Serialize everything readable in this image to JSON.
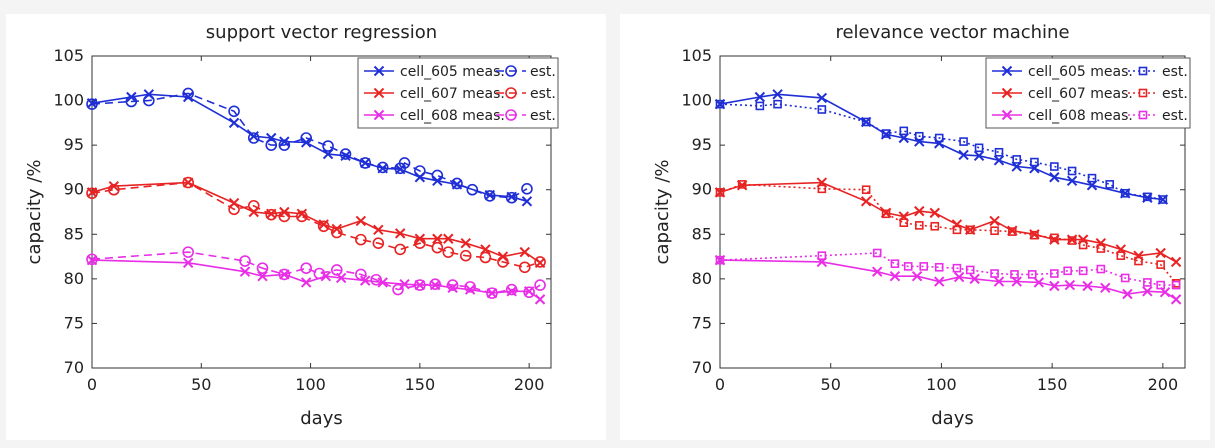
{
  "chart_data": [
    {
      "type": "line",
      "title": "support vector regression",
      "xlabel": "days",
      "ylabel": "capacity /%",
      "xlim": [
        0,
        210
      ],
      "ylim": [
        70,
        105
      ],
      "xticks": [
        0,
        50,
        100,
        150,
        200
      ],
      "yticks": [
        70,
        75,
        80,
        85,
        90,
        95,
        100,
        105
      ],
      "grid": false,
      "legend_position": "top-right",
      "series": [
        {
          "name": "cell_605 meas.",
          "color": "#1f2fd6",
          "marker": "x",
          "style": "solid",
          "x": [
            0,
            18,
            26,
            44,
            65,
            74,
            82,
            88,
            98,
            108,
            116,
            125,
            133,
            141,
            150,
            158,
            167,
            182,
            192,
            199
          ],
          "y": [
            99.7,
            100.4,
            100.7,
            100.4,
            97.5,
            96.0,
            95.8,
            95.4,
            95.3,
            94.0,
            93.8,
            93.0,
            92.4,
            92.3,
            91.4,
            91.0,
            90.6,
            89.4,
            89.2,
            88.7
          ]
        },
        {
          "name": "est.",
          "color": "#1f2fd6",
          "marker": "o",
          "style": "dashed",
          "x": [
            0,
            18,
            26,
            44,
            65,
            74,
            82,
            88,
            98,
            108,
            116,
            125,
            133,
            141,
            143,
            150,
            158,
            167,
            174,
            182,
            192,
            199
          ],
          "y": [
            99.6,
            99.9,
            100.0,
            100.8,
            98.8,
            95.8,
            95.0,
            95.0,
            95.8,
            94.9,
            94.0,
            93.0,
            92.5,
            92.4,
            93.0,
            92.1,
            91.6,
            90.7,
            90.0,
            89.3,
            89.1,
            90.1
          ]
        },
        {
          "name": "cell_607 meas.",
          "color": "#e82323",
          "marker": "x",
          "style": "solid",
          "x": [
            0,
            10,
            44,
            65,
            74,
            82,
            88,
            96,
            106,
            112,
            123,
            131,
            141,
            150,
            158,
            163,
            171,
            180,
            188,
            198,
            205
          ],
          "y": [
            89.7,
            90.4,
            90.8,
            88.5,
            87.5,
            87.3,
            87.5,
            87.3,
            86.1,
            85.6,
            86.5,
            85.5,
            85.1,
            84.5,
            84.5,
            84.5,
            84.0,
            83.3,
            82.5,
            83.0,
            81.8
          ]
        },
        {
          "name": "est.",
          "color": "#e82323",
          "marker": "o",
          "style": "dashed",
          "x": [
            0,
            10,
            44,
            65,
            74,
            82,
            88,
            96,
            106,
            112,
            123,
            131,
            141,
            150,
            158,
            163,
            171,
            180,
            188,
            198,
            205
          ],
          "y": [
            89.6,
            90.0,
            90.8,
            87.8,
            88.2,
            87.2,
            87.0,
            87.0,
            85.9,
            85.2,
            84.4,
            84.0,
            83.3,
            84.0,
            83.5,
            83.0,
            82.6,
            82.4,
            81.9,
            81.3,
            81.9
          ]
        },
        {
          "name": "cell_608 meas.",
          "color": "#e82ee6",
          "marker": "x",
          "style": "solid",
          "x": [
            0,
            44,
            70,
            78,
            88,
            98,
            107,
            114,
            125,
            133,
            143,
            150,
            157,
            165,
            173,
            183,
            192,
            200,
            205
          ],
          "y": [
            82.1,
            81.8,
            80.8,
            80.3,
            80.5,
            79.6,
            80.3,
            80.1,
            79.8,
            79.6,
            79.4,
            79.3,
            79.3,
            79.0,
            78.8,
            78.4,
            78.6,
            78.6,
            77.7
          ]
        },
        {
          "name": "est.",
          "color": "#e82ee6",
          "marker": "o",
          "style": "dashed",
          "x": [
            0,
            44,
            70,
            78,
            88,
            98,
            104,
            112,
            123,
            130,
            140,
            150,
            157,
            165,
            173,
            183,
            192,
            200,
            205
          ],
          "y": [
            82.2,
            83.0,
            82.0,
            81.2,
            80.5,
            81.2,
            80.6,
            81.0,
            80.5,
            79.9,
            78.8,
            79.3,
            79.4,
            79.3,
            79.1,
            78.4,
            78.8,
            78.5,
            79.3
          ]
        }
      ]
    },
    {
      "type": "line",
      "title": "relevance vector machine",
      "xlabel": "days",
      "ylabel": "capacity /%",
      "xlim": [
        0,
        210
      ],
      "ylim": [
        70,
        105
      ],
      "xticks": [
        0,
        50,
        100,
        150,
        200
      ],
      "yticks": [
        70,
        75,
        80,
        85,
        90,
        95,
        100,
        105
      ],
      "grid": false,
      "legend_position": "top-right",
      "series": [
        {
          "name": "cell_605 meas.",
          "color": "#1f2fd6",
          "marker": "x",
          "style": "solid",
          "x": [
            0,
            18,
            26,
            46,
            66,
            75,
            83,
            90,
            99,
            110,
            117,
            126,
            134,
            142,
            151,
            159,
            168,
            183,
            193,
            200
          ],
          "y": [
            99.6,
            100.4,
            100.7,
            100.3,
            97.6,
            96.2,
            95.8,
            95.4,
            95.2,
            93.9,
            93.8,
            93.3,
            92.6,
            92.4,
            91.4,
            91.0,
            90.5,
            89.6,
            89.1,
            88.9
          ]
        },
        {
          "name": "est.",
          "color": "#1f2fd6",
          "marker": "square",
          "style": "dotted",
          "x": [
            0,
            18,
            26,
            46,
            66,
            75,
            83,
            90,
            99,
            110,
            117,
            126,
            134,
            142,
            151,
            159,
            168,
            176,
            183,
            193,
            200
          ],
          "y": [
            99.6,
            99.4,
            99.6,
            99.0,
            97.6,
            96.3,
            96.6,
            96.0,
            95.8,
            95.4,
            94.7,
            94.2,
            93.4,
            93.1,
            92.6,
            92.1,
            91.3,
            90.6,
            89.6,
            89.2,
            88.9
          ]
        },
        {
          "name": "cell_607 meas.",
          "color": "#e82323",
          "marker": "x",
          "style": "solid",
          "x": [
            0,
            10,
            46,
            66,
            75,
            83,
            90,
            97,
            107,
            113,
            124,
            132,
            142,
            151,
            159,
            164,
            172,
            181,
            189,
            199,
            206
          ],
          "y": [
            89.7,
            90.5,
            90.8,
            88.7,
            87.4,
            87.0,
            87.6,
            87.4,
            86.1,
            85.5,
            86.5,
            85.4,
            85.0,
            84.4,
            84.4,
            84.4,
            84.0,
            83.3,
            82.6,
            82.9,
            81.9
          ]
        },
        {
          "name": "est.",
          "color": "#e82323",
          "marker": "square",
          "style": "dotted",
          "x": [
            0,
            10,
            46,
            66,
            75,
            83,
            90,
            97,
            107,
            113,
            124,
            132,
            142,
            151,
            159,
            164,
            172,
            181,
            189,
            199,
            206
          ],
          "y": [
            89.7,
            90.6,
            90.1,
            90.0,
            87.3,
            86.3,
            86.0,
            85.9,
            85.5,
            85.5,
            85.4,
            85.3,
            84.9,
            84.6,
            84.3,
            83.8,
            83.4,
            82.6,
            82.0,
            81.6,
            79.5
          ]
        },
        {
          "name": "cell_608 meas.",
          "color": "#e82ee6",
          "marker": "x",
          "style": "solid",
          "x": [
            0,
            46,
            71,
            79,
            89,
            99,
            108,
            115,
            126,
            134,
            144,
            151,
            158,
            166,
            174,
            184,
            193,
            201,
            206
          ],
          "y": [
            82.1,
            81.9,
            80.8,
            80.3,
            80.3,
            79.7,
            80.2,
            80.0,
            79.7,
            79.7,
            79.6,
            79.2,
            79.3,
            79.2,
            79.0,
            78.3,
            78.6,
            78.5,
            77.7
          ]
        },
        {
          "name": "est.",
          "color": "#e82ee6",
          "marker": "square",
          "style": "dotted",
          "x": [
            0,
            46,
            71,
            79,
            85,
            92,
            99,
            107,
            113,
            124,
            133,
            141,
            151,
            157,
            164,
            172,
            183,
            193,
            199,
            206
          ],
          "y": [
            82.1,
            82.6,
            82.9,
            81.7,
            81.4,
            81.4,
            81.3,
            81.2,
            81.0,
            80.6,
            80.5,
            80.5,
            80.6,
            80.9,
            80.9,
            81.1,
            80.1,
            79.6,
            79.3,
            79.3
          ]
        }
      ]
    }
  ]
}
